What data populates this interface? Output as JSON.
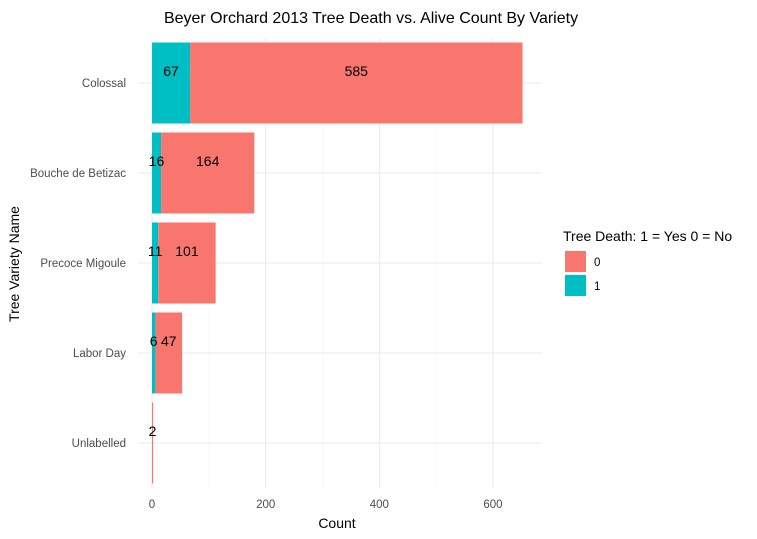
{
  "chart_data": {
    "type": "bar",
    "orientation": "horizontal",
    "stacked": true,
    "title": "Beyer Orchard 2013 Tree Death vs. Alive Count By Variety",
    "xlabel": "Count",
    "ylabel": "Tree Variety Name",
    "categories": [
      "Colossal",
      "Bouche de Betizac",
      "Precoce Migoule",
      "Labor Day",
      "Unlabelled"
    ],
    "series": [
      {
        "name": "1",
        "color": "#00BFC4",
        "values": [
          67,
          16,
          11,
          6,
          0
        ],
        "labels": [
          "67",
          "16",
          "11",
          "6",
          ""
        ]
      },
      {
        "name": "0",
        "color": "#F8766D",
        "values": [
          585,
          164,
          101,
          47,
          2
        ],
        "labels": [
          "585",
          "164",
          "101",
          "47",
          "2"
        ]
      }
    ],
    "x_ticks": [
      0,
      200,
      400,
      600
    ],
    "xlim": [
      0,
      690
    ],
    "grid": true,
    "legend": {
      "title": "Tree Death: 1 = Yes 0 = No",
      "position": "right",
      "entries": [
        {
          "label": "0",
          "color": "#F8766D"
        },
        {
          "label": "1",
          "color": "#00BFC4"
        }
      ]
    }
  }
}
